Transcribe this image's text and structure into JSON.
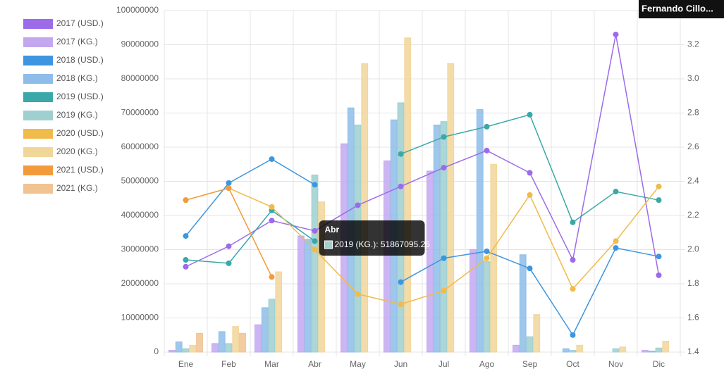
{
  "chart_data": {
    "type": "bar",
    "categories": [
      "Ene",
      "Feb",
      "Mar",
      "Abr",
      "May",
      "Jun",
      "Jul",
      "Ago",
      "Sep",
      "Oct",
      "Nov",
      "Dic"
    ],
    "ylim": [
      0,
      100000000
    ],
    "yticks": [
      0,
      10000000,
      20000000,
      30000000,
      40000000,
      50000000,
      60000000,
      70000000,
      80000000,
      90000000,
      100000000
    ],
    "y2lim": [
      1.4,
      3.4
    ],
    "y2ticks": [
      1.4,
      1.6,
      1.8,
      {
        "value": 2,
        "label": "2.0"
      },
      2.2,
      2.4,
      2.6,
      2.8,
      {
        "value": 3,
        "label": "3.0"
      },
      3.2
    ],
    "grid": true,
    "legend": "left",
    "series": [
      {
        "name": "2017 (USD.)",
        "type": "line",
        "axis": "y2",
        "color": "#9c6bea",
        "values": [
          1.9,
          2.02,
          2.17,
          2.11,
          2.26,
          2.37,
          2.48,
          2.58,
          2.45,
          1.94,
          3.26,
          1.85
        ]
      },
      {
        "name": "2017 (KG.)",
        "type": "bar",
        "color": "#c3a8f0",
        "values": [
          500000,
          2500000,
          8000000,
          34000000,
          61000000,
          56000000,
          53000000,
          30000000,
          2000000,
          null,
          0,
          500000
        ]
      },
      {
        "name": "2018 (USD.)",
        "type": "line",
        "axis": "y2",
        "color": "#3d95e0",
        "values": [
          2.08,
          2.39,
          2.53,
          2.38,
          null,
          1.81,
          1.95,
          1.99,
          1.89,
          1.5,
          2.01,
          1.96
        ]
      },
      {
        "name": "2018 (KG.)",
        "type": "bar",
        "color": "#8dbde8",
        "values": [
          3000000,
          6000000,
          13000000,
          33000000,
          71500000,
          68000000,
          66500000,
          71000000,
          28500000,
          1000000,
          0,
          300000
        ]
      },
      {
        "name": "2019 (USD.)",
        "type": "line",
        "axis": "y2",
        "color": "#3aa8a8",
        "values": [
          1.94,
          1.92,
          2.23,
          2.05,
          null,
          2.56,
          2.66,
          2.72,
          2.79,
          2.16,
          2.34,
          2.29
        ]
      },
      {
        "name": "2019 (KG.)",
        "type": "bar",
        "color": "#9fcfcf",
        "values": [
          1000000,
          2500000,
          15500000,
          51867095.26,
          66500000,
          73000000,
          67500000,
          26500000,
          4500000,
          500000,
          1000000,
          1200000
        ]
      },
      {
        "name": "2020 (USD.)",
        "type": "line",
        "axis": "y2",
        "color": "#f0bb4a",
        "values": [
          2.29,
          2.36,
          2.25,
          2.0,
          1.74,
          1.68,
          1.76,
          1.95,
          2.32,
          1.77,
          2.05,
          2.37
        ]
      },
      {
        "name": "2020 (KG.)",
        "type": "bar",
        "color": "#f1d69a",
        "values": [
          2000000,
          7500000,
          23500000,
          44000000,
          84500000,
          92000000,
          84500000,
          55000000,
          11000000,
          2000000,
          1500000,
          3200000
        ]
      },
      {
        "name": "2021 (USD.)",
        "type": "line",
        "axis": "y2",
        "color": "#f29a3c",
        "values": [
          2.29,
          2.36,
          1.84,
          null,
          null,
          null,
          null,
          null,
          null,
          null,
          null,
          null
        ]
      },
      {
        "name": "2021 (KG.)",
        "type": "bar",
        "color": "#f1c391",
        "values": [
          5500000,
          5500000,
          null,
          null,
          null,
          null,
          null,
          null,
          null,
          null,
          null,
          null
        ]
      }
    ],
    "tooltip": {
      "title": "Abr",
      "label": "2019 (KG.): 51867095.26"
    }
  },
  "overlay": {
    "user": "Fernando Cillo..."
  }
}
